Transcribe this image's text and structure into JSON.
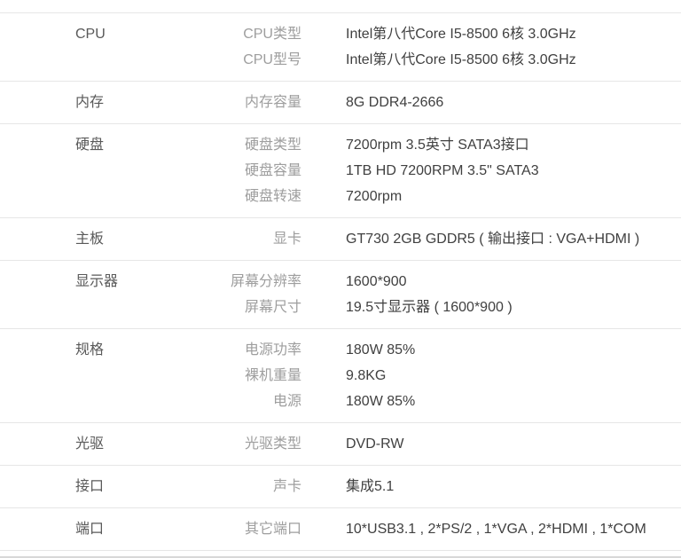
{
  "colors": {
    "background": "#ffffff",
    "category": "#595959",
    "spec_label": "#9e9e9e",
    "spec_value": "#404040",
    "divider": "#e6e6e6",
    "bottom_divider": "#d8d8d8"
  },
  "spec_table": {
    "sections": [
      {
        "category": "CPU",
        "rows": [
          {
            "label": "CPU类型",
            "value": "Intel第八代Core I5-8500 6核 3.0GHz"
          },
          {
            "label": "CPU型号",
            "value": "Intel第八代Core I5-8500 6核 3.0GHz"
          }
        ]
      },
      {
        "category": "内存",
        "rows": [
          {
            "label": "内存容量",
            "value": "8G DDR4-2666"
          }
        ]
      },
      {
        "category": "硬盘",
        "rows": [
          {
            "label": "硬盘类型",
            "value": "7200rpm 3.5英寸 SATA3接口"
          },
          {
            "label": "硬盘容量",
            "value": "1TB HD 7200RPM 3.5\" SATA3"
          },
          {
            "label": "硬盘转速",
            "value": "7200rpm"
          }
        ]
      },
      {
        "category": "主板",
        "rows": [
          {
            "label": "显卡",
            "value": "GT730 2GB GDDR5 ( 输出接口 : VGA+HDMI )"
          }
        ]
      },
      {
        "category": "显示器",
        "rows": [
          {
            "label": "屏幕分辨率",
            "value": "1600*900"
          },
          {
            "label": "屏幕尺寸",
            "value": "19.5寸显示器 ( 1600*900 )"
          }
        ]
      },
      {
        "category": "规格",
        "rows": [
          {
            "label": "电源功率",
            "value": "180W 85%"
          },
          {
            "label": "裸机重量",
            "value": "9.8KG"
          },
          {
            "label": "电源",
            "value": "180W 85%"
          }
        ]
      },
      {
        "category": "光驱",
        "rows": [
          {
            "label": "光驱类型",
            "value": "DVD-RW"
          }
        ]
      },
      {
        "category": "接口",
        "rows": [
          {
            "label": "声卡",
            "value": "集成5.1"
          }
        ]
      },
      {
        "category": "端口",
        "rows": [
          {
            "label": "其它端口",
            "value": "10*USB3.1 , 2*PS/2 , 1*VGA , 2*HDMI , 1*COM"
          }
        ]
      }
    ]
  }
}
